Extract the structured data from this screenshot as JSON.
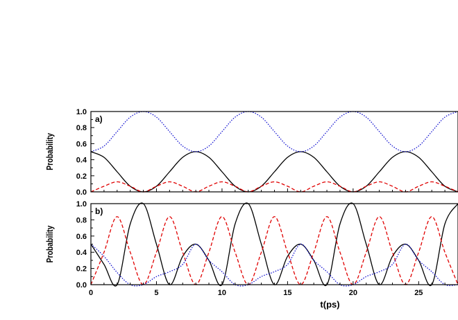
{
  "chart_data": [
    {
      "type": "line",
      "panel_label": "a)",
      "ylabel": "Probability",
      "xlabel": "",
      "xlim": [
        0,
        28
      ],
      "ylim": [
        0,
        1.0
      ],
      "yticks": [
        "0.0",
        "0.2",
        "0.4",
        "0.6",
        "0.8",
        "1.0"
      ],
      "xticks": [],
      "grid": false,
      "legend": "none",
      "series": [
        {
          "color": "#000000",
          "dash": "solid",
          "x": [
            0,
            1,
            2,
            3,
            4,
            5,
            6,
            7,
            8,
            9,
            10,
            11,
            12,
            13,
            14,
            15,
            16,
            17,
            18,
            19,
            20,
            21,
            22,
            23,
            24,
            25,
            26,
            27,
            28
          ],
          "y": [
            0.5,
            0.43,
            0.25,
            0.07,
            0.0,
            0.07,
            0.25,
            0.43,
            0.5,
            0.43,
            0.25,
            0.07,
            0.0,
            0.07,
            0.25,
            0.43,
            0.5,
            0.43,
            0.25,
            0.07,
            0.0,
            0.07,
            0.25,
            0.43,
            0.5,
            0.43,
            0.25,
            0.07,
            0.0
          ]
        },
        {
          "color": "#e00000",
          "dash": "dashed",
          "x": [
            0,
            1,
            2,
            3,
            4,
            5,
            6,
            7,
            8,
            9,
            10,
            11,
            12,
            13,
            14,
            15,
            16,
            17,
            18,
            19,
            20,
            21,
            22,
            23,
            24,
            25,
            26,
            27,
            28
          ],
          "y": [
            0.0,
            0.07,
            0.125,
            0.07,
            0.0,
            0.07,
            0.125,
            0.07,
            0.0,
            0.07,
            0.125,
            0.07,
            0.0,
            0.07,
            0.125,
            0.07,
            0.0,
            0.07,
            0.125,
            0.07,
            0.0,
            0.07,
            0.125,
            0.07,
            0.0,
            0.07,
            0.125,
            0.07,
            0.0
          ]
        },
        {
          "color": "#1010d0",
          "dash": "dotted",
          "x": [
            0,
            1,
            2,
            3,
            4,
            5,
            6,
            7,
            8,
            9,
            10,
            11,
            12,
            13,
            14,
            15,
            16,
            17,
            18,
            19,
            20,
            21,
            22,
            23,
            24,
            25,
            26,
            27,
            28
          ],
          "y": [
            0.5,
            0.57,
            0.75,
            0.93,
            1.0,
            0.93,
            0.75,
            0.57,
            0.5,
            0.57,
            0.75,
            0.93,
            1.0,
            0.93,
            0.75,
            0.57,
            0.5,
            0.57,
            0.75,
            0.93,
            1.0,
            0.93,
            0.75,
            0.57,
            0.5,
            0.57,
            0.75,
            0.93,
            1.0
          ]
        }
      ]
    },
    {
      "type": "line",
      "panel_label": "b)",
      "ylabel": "Probability",
      "xlabel": "t(ps)",
      "xlim": [
        0,
        28
      ],
      "ylim": [
        0,
        1.0
      ],
      "yticks": [
        "0.0",
        "0.2",
        "0.4",
        "0.6",
        "0.8",
        "1.0"
      ],
      "xticks": [
        "0",
        "5",
        "10",
        "15",
        "20",
        "25"
      ],
      "grid": false,
      "legend": "none",
      "series": [
        {
          "color": "#000000",
          "dash": "solid",
          "x": [
            0,
            1,
            2,
            3,
            4,
            5,
            6,
            7,
            8,
            9,
            10,
            11,
            12,
            13,
            14,
            15,
            16,
            17,
            18,
            19,
            20,
            21,
            22,
            23,
            24,
            25,
            26,
            27,
            28
          ],
          "y": [
            0.5,
            0.25,
            0.0,
            0.75,
            1.0,
            0.5,
            0.0,
            0.35,
            0.5,
            0.3,
            0.0,
            0.75,
            1.0,
            0.5,
            0.0,
            0.35,
            0.5,
            0.3,
            0.0,
            0.75,
            1.0,
            0.5,
            0.0,
            0.35,
            0.5,
            0.3,
            0.0,
            0.75,
            1.0
          ]
        },
        {
          "color": "#e00000",
          "dash": "dashed",
          "x": [
            0,
            1,
            2,
            3,
            4,
            5,
            6,
            7,
            8,
            9,
            10,
            11,
            12,
            13,
            14,
            15,
            16,
            17,
            18,
            19,
            20,
            21,
            22,
            23,
            24,
            25,
            26,
            27,
            28
          ],
          "y": [
            0.0,
            0.4,
            0.84,
            0.4,
            0.0,
            0.4,
            0.84,
            0.4,
            0.0,
            0.4,
            0.84,
            0.4,
            0.0,
            0.4,
            0.84,
            0.4,
            0.0,
            0.4,
            0.84,
            0.4,
            0.0,
            0.4,
            0.84,
            0.4,
            0.0,
            0.4,
            0.84,
            0.4,
            0.0
          ]
        },
        {
          "color": "#1010d0",
          "dash": "dotted",
          "x": [
            0,
            1,
            2,
            3,
            4,
            5,
            6,
            7,
            8,
            9,
            10,
            11,
            12,
            13,
            14,
            15,
            16,
            17,
            18,
            19,
            20,
            21,
            22,
            23,
            24,
            25,
            26,
            27,
            28
          ],
          "y": [
            0.5,
            0.35,
            0.15,
            0.0,
            0.0,
            0.1,
            0.16,
            0.25,
            0.5,
            0.3,
            0.16,
            0.0,
            0.0,
            0.1,
            0.16,
            0.25,
            0.5,
            0.3,
            0.16,
            0.0,
            0.0,
            0.1,
            0.16,
            0.25,
            0.5,
            0.3,
            0.16,
            0.0,
            0.0
          ]
        }
      ]
    }
  ]
}
